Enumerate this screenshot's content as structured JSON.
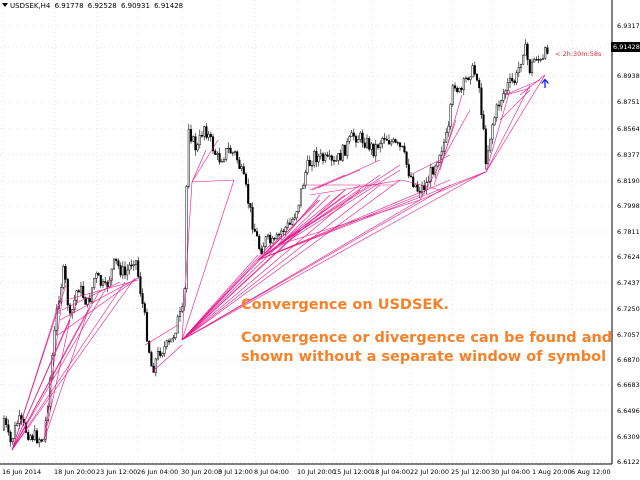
{
  "header": {
    "symbol": "USDSEK,H4",
    "open": "6.91778",
    "high": "6.92528",
    "low": "6.90931",
    "close": "6.91428"
  },
  "price_axis": {
    "labels": [
      "6.93170",
      "6.91428",
      "6.89385",
      "6.87510",
      "6.85645",
      "6.83775",
      "6.81905",
      "6.79980",
      "6.78110",
      "6.76240",
      "6.74370",
      "6.72500",
      "6.70575",
      "6.68705",
      "6.66835",
      "6.64965",
      "6.63095",
      "6.61225"
    ],
    "current_price": "6.91428",
    "countdown": "< 2h:30m:58s"
  },
  "time_axis": {
    "labels": [
      "16 Jun 2014",
      "18 Jun 20:00",
      "23 Jun 12:00",
      "26 Jun 04:00",
      "30 Jun 20:00",
      "3 Jul 12:00",
      "8 Jul 04:00",
      "10 Jul 20:00",
      "15 Jul 12:00",
      "18 Jul 04:00",
      "22 Jul 20:00",
      "25 Jul 12:00",
      "30 Jul 04:00",
      "1 Aug 20:00",
      "6 Aug 12:00"
    ]
  },
  "colors": {
    "candles": "#000000",
    "convergence_lines": "#e8168a",
    "arrow": "#1a1aff",
    "annotation_text": "#f5822a",
    "grid": "#c8c8c8",
    "countdown": "#e0253a"
  },
  "annotation": {
    "title": "Convergence on USDSEK.",
    "line1": "Convergence or divergence can be found and",
    "line2": "shown without a separate window of symbol"
  }
}
